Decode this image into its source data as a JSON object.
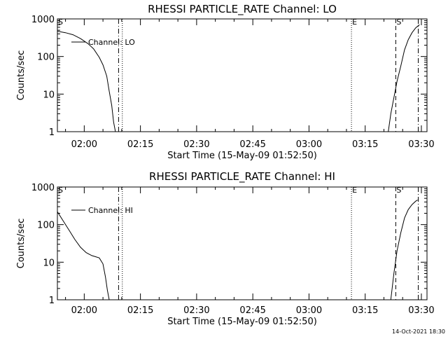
{
  "footer": {
    "date_stamp": "14-Oct-2021 18:30"
  },
  "chart_data": [
    {
      "type": "line",
      "title": "RHESSI PARTICLE_RATE Channel: LO",
      "xlabel": "Start Time (15-May-09 01:52:50)",
      "ylabel": "Counts/sec",
      "y_scale": "log",
      "xlim": [
        "01:52:50",
        "03:31:30"
      ],
      "ylim": [
        1,
        1000
      ],
      "x_ticks": [
        "02:00",
        "02:15",
        "02:30",
        "02:45",
        "03:00",
        "03:15",
        "03:30"
      ],
      "y_ticks": [
        "1",
        "10",
        "100",
        "1000"
      ],
      "legend": {
        "position": "top-left",
        "entries": [
          "Channel: LO"
        ]
      },
      "series": [
        {
          "name": "Channel: LO",
          "segments": [
            {
              "x": [
                "01:52:50",
                "01:55:00",
                "01:57:00",
                "01:59:00",
                "02:01:00",
                "02:02:30",
                "02:04:00",
                "02:05:00",
                "02:06:00",
                "02:06:40",
                "02:07:20",
                "02:07:50",
                "02:08:20"
              ],
              "y": [
                470,
                430,
                380,
                300,
                220,
                160,
                95,
                60,
                30,
                12,
                5,
                1.8,
                1
              ]
            },
            {
              "x": [
                "03:21:10",
                "03:21:50",
                "03:22:40",
                "03:23:30",
                "03:24:30",
                "03:25:30",
                "03:26:30",
                "03:27:30",
                "03:28:30",
                "03:29:30"
              ],
              "y": [
                1,
                3,
                8,
                22,
                55,
                150,
                280,
                430,
                580,
                700
              ]
            }
          ]
        }
      ],
      "markers": [
        {
          "label": "S",
          "x": "01:52:50",
          "style": "solid"
        },
        {
          "label": "",
          "x": "02:09:10",
          "style": "dashdot"
        },
        {
          "label": "",
          "x": "02:10:10",
          "style": "dotted"
        },
        {
          "label": "E",
          "x": "03:11:20",
          "style": "dotted"
        },
        {
          "label": "S",
          "x": "03:23:10",
          "style": "dashed"
        },
        {
          "label": "",
          "x": "03:29:10",
          "style": "dashdot"
        }
      ]
    },
    {
      "type": "line",
      "title": "RHESSI PARTICLE_RATE Channel: HI",
      "xlabel": "Start Time (15-May-09 01:52:50)",
      "ylabel": "Counts/sec",
      "y_scale": "log",
      "xlim": [
        "01:52:50",
        "03:31:30"
      ],
      "ylim": [
        1,
        1000
      ],
      "x_ticks": [
        "02:00",
        "02:15",
        "02:30",
        "02:45",
        "03:00",
        "03:15",
        "03:30"
      ],
      "y_ticks": [
        "1",
        "10",
        "100",
        "1000"
      ],
      "legend": {
        "position": "top-left",
        "entries": [
          "Channel: HI"
        ]
      },
      "series": [
        {
          "name": "Channel: HI",
          "segments": [
            {
              "x": [
                "01:52:50",
                "01:54:30",
                "01:56:00",
                "01:57:30",
                "01:59:00",
                "02:00:30",
                "02:02:00",
                "02:03:00",
                "02:04:00",
                "02:05:00",
                "02:05:40",
                "02:06:10",
                "02:06:40"
              ],
              "y": [
                220,
                120,
                70,
                40,
                25,
                18,
                15,
                14,
                13,
                9,
                4,
                1.8,
                1
              ]
            },
            {
              "x": [
                "03:21:50",
                "03:22:40",
                "03:23:30",
                "03:24:30",
                "03:25:30",
                "03:26:30",
                "03:27:30",
                "03:28:30",
                "03:29:00"
              ],
              "y": [
                1,
                5,
                20,
                60,
                150,
                250,
                340,
                420,
                450
              ]
            }
          ]
        }
      ],
      "markers": [
        {
          "label": "S",
          "x": "01:52:50",
          "style": "solid"
        },
        {
          "label": "",
          "x": "02:09:10",
          "style": "dashdot"
        },
        {
          "label": "",
          "x": "02:10:10",
          "style": "dotted"
        },
        {
          "label": "E",
          "x": "03:11:20",
          "style": "dotted"
        },
        {
          "label": "S",
          "x": "03:23:10",
          "style": "dashed"
        },
        {
          "label": "",
          "x": "03:29:10",
          "style": "dashdot"
        }
      ]
    }
  ]
}
